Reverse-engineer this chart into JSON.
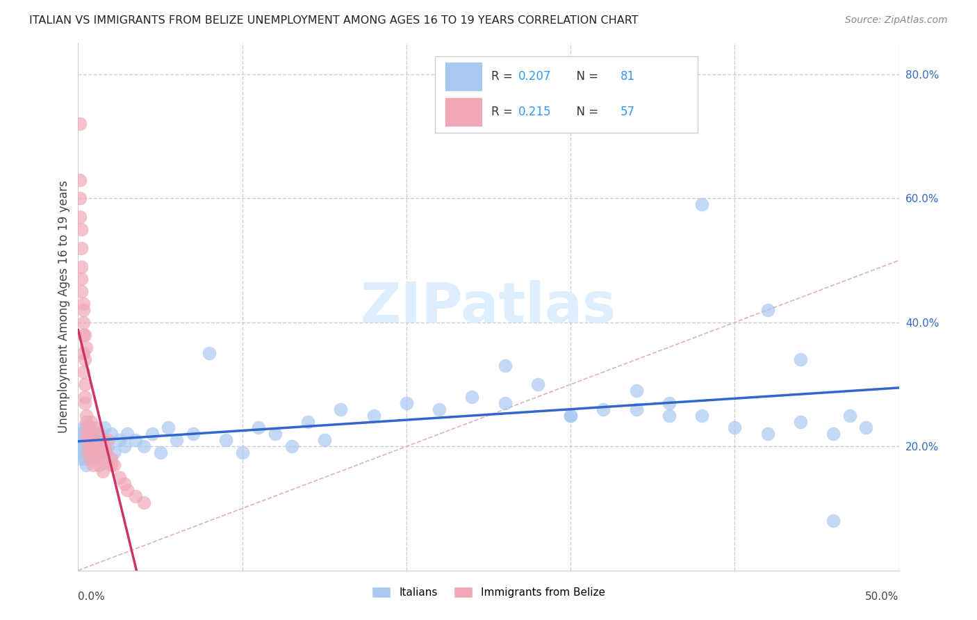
{
  "title": "ITALIAN VS IMMIGRANTS FROM BELIZE UNEMPLOYMENT AMONG AGES 16 TO 19 YEARS CORRELATION CHART",
  "source": "Source: ZipAtlas.com",
  "ylabel": "Unemployment Among Ages 16 to 19 years",
  "xlim": [
    0.0,
    0.5
  ],
  "ylim": [
    0.0,
    0.85
  ],
  "italian_R": 0.207,
  "italian_N": 81,
  "belize_R": 0.215,
  "belize_N": 57,
  "italian_color": "#a8c8f0",
  "belize_color": "#f0a8b8",
  "italian_line_color": "#3366cc",
  "belize_line_color": "#cc3366",
  "legend_R_color": "#3399ff",
  "background_color": "#ffffff",
  "grid_color": "#cccccc",
  "watermark_color": "#ddeeff",
  "italian_x": [
    0.001,
    0.001,
    0.002,
    0.002,
    0.002,
    0.003,
    0.003,
    0.003,
    0.003,
    0.004,
    0.004,
    0.004,
    0.005,
    0.005,
    0.005,
    0.005,
    0.006,
    0.006,
    0.006,
    0.007,
    0.007,
    0.007,
    0.008,
    0.008,
    0.009,
    0.009,
    0.01,
    0.01,
    0.011,
    0.012,
    0.013,
    0.014,
    0.015,
    0.016,
    0.018,
    0.02,
    0.022,
    0.025,
    0.028,
    0.03,
    0.035,
    0.04,
    0.045,
    0.05,
    0.055,
    0.06,
    0.07,
    0.08,
    0.09,
    0.1,
    0.11,
    0.12,
    0.13,
    0.14,
    0.15,
    0.16,
    0.18,
    0.2,
    0.22,
    0.24,
    0.26,
    0.28,
    0.3,
    0.32,
    0.34,
    0.36,
    0.38,
    0.4,
    0.42,
    0.44,
    0.46,
    0.47,
    0.48,
    0.38,
    0.42,
    0.44,
    0.26,
    0.3,
    0.34,
    0.36,
    0.46
  ],
  "italian_y": [
    0.21,
    0.19,
    0.22,
    0.2,
    0.18,
    0.21,
    0.23,
    0.19,
    0.2,
    0.22,
    0.2,
    0.18,
    0.21,
    0.23,
    0.19,
    0.17,
    0.22,
    0.2,
    0.21,
    0.19,
    0.21,
    0.23,
    0.2,
    0.22,
    0.19,
    0.21,
    0.22,
    0.2,
    0.21,
    0.19,
    0.22,
    0.2,
    0.21,
    0.23,
    0.2,
    0.22,
    0.19,
    0.21,
    0.2,
    0.22,
    0.21,
    0.2,
    0.22,
    0.19,
    0.23,
    0.21,
    0.22,
    0.35,
    0.21,
    0.19,
    0.23,
    0.22,
    0.2,
    0.24,
    0.21,
    0.26,
    0.25,
    0.27,
    0.26,
    0.28,
    0.27,
    0.3,
    0.25,
    0.26,
    0.29,
    0.27,
    0.25,
    0.23,
    0.22,
    0.24,
    0.22,
    0.25,
    0.23,
    0.59,
    0.42,
    0.34,
    0.33,
    0.25,
    0.26,
    0.25,
    0.08
  ],
  "belize_x": [
    0.001,
    0.001,
    0.001,
    0.002,
    0.002,
    0.002,
    0.002,
    0.003,
    0.003,
    0.003,
    0.003,
    0.003,
    0.004,
    0.004,
    0.004,
    0.004,
    0.005,
    0.005,
    0.005,
    0.006,
    0.006,
    0.006,
    0.007,
    0.007,
    0.007,
    0.008,
    0.008,
    0.009,
    0.009,
    0.01,
    0.01,
    0.011,
    0.012,
    0.013,
    0.014,
    0.015,
    0.016,
    0.017,
    0.018,
    0.02,
    0.022,
    0.025,
    0.028,
    0.03,
    0.035,
    0.04,
    0.01,
    0.012,
    0.008,
    0.006,
    0.003,
    0.004,
    0.005,
    0.002,
    0.001,
    0.015,
    0.02
  ],
  "belize_y": [
    0.72,
    0.6,
    0.57,
    0.52,
    0.49,
    0.47,
    0.45,
    0.43,
    0.42,
    0.38,
    0.35,
    0.32,
    0.34,
    0.3,
    0.28,
    0.27,
    0.25,
    0.24,
    0.22,
    0.21,
    0.2,
    0.19,
    0.22,
    0.2,
    0.18,
    0.21,
    0.2,
    0.19,
    0.17,
    0.21,
    0.19,
    0.2,
    0.18,
    0.17,
    0.19,
    0.18,
    0.2,
    0.19,
    0.21,
    0.18,
    0.17,
    0.15,
    0.14,
    0.13,
    0.12,
    0.11,
    0.23,
    0.22,
    0.24,
    0.23,
    0.4,
    0.38,
    0.36,
    0.55,
    0.63,
    0.16,
    0.17
  ]
}
